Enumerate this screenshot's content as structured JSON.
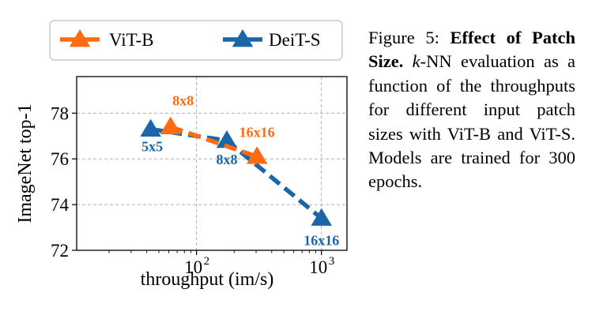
{
  "chart_data": {
    "type": "line",
    "xscale": "log",
    "xlabel": "throughput (im/s)",
    "ylabel": "ImageNet top-1",
    "xlim": [
      11,
      1600
    ],
    "ylim": [
      72,
      79.6
    ],
    "yticks": [
      "72",
      "74",
      "76",
      "78"
    ],
    "xticks": [
      {
        "base": "10",
        "exp": "2",
        "value": 100
      },
      {
        "base": "10",
        "exp": "3",
        "value": 1000
      }
    ],
    "grid": true,
    "legend_position": "top",
    "series": [
      {
        "name": "ViT-B",
        "color": "#ff6a13",
        "points": [
          {
            "x": 62,
            "y": 77.4,
            "label": "8x8"
          },
          {
            "x": 305,
            "y": 76.1,
            "label": "16x16"
          }
        ]
      },
      {
        "name": "DeiT-S",
        "color": "#1a66a8",
        "points": [
          {
            "x": 43,
            "y": 77.3,
            "label": "5x5"
          },
          {
            "x": 175,
            "y": 76.8,
            "label": "8x8"
          },
          {
            "x": 1000,
            "y": 73.4,
            "label": "16x16"
          }
        ]
      }
    ]
  },
  "caption": {
    "label": "Figure 5:",
    "title": "Effect of Patch Size.",
    "k": "k",
    "body": "-NN evaluation as a function of the throughputs for different input patch sizes with ViT-B and ViT-S. Models are trained for 300 epochs."
  }
}
